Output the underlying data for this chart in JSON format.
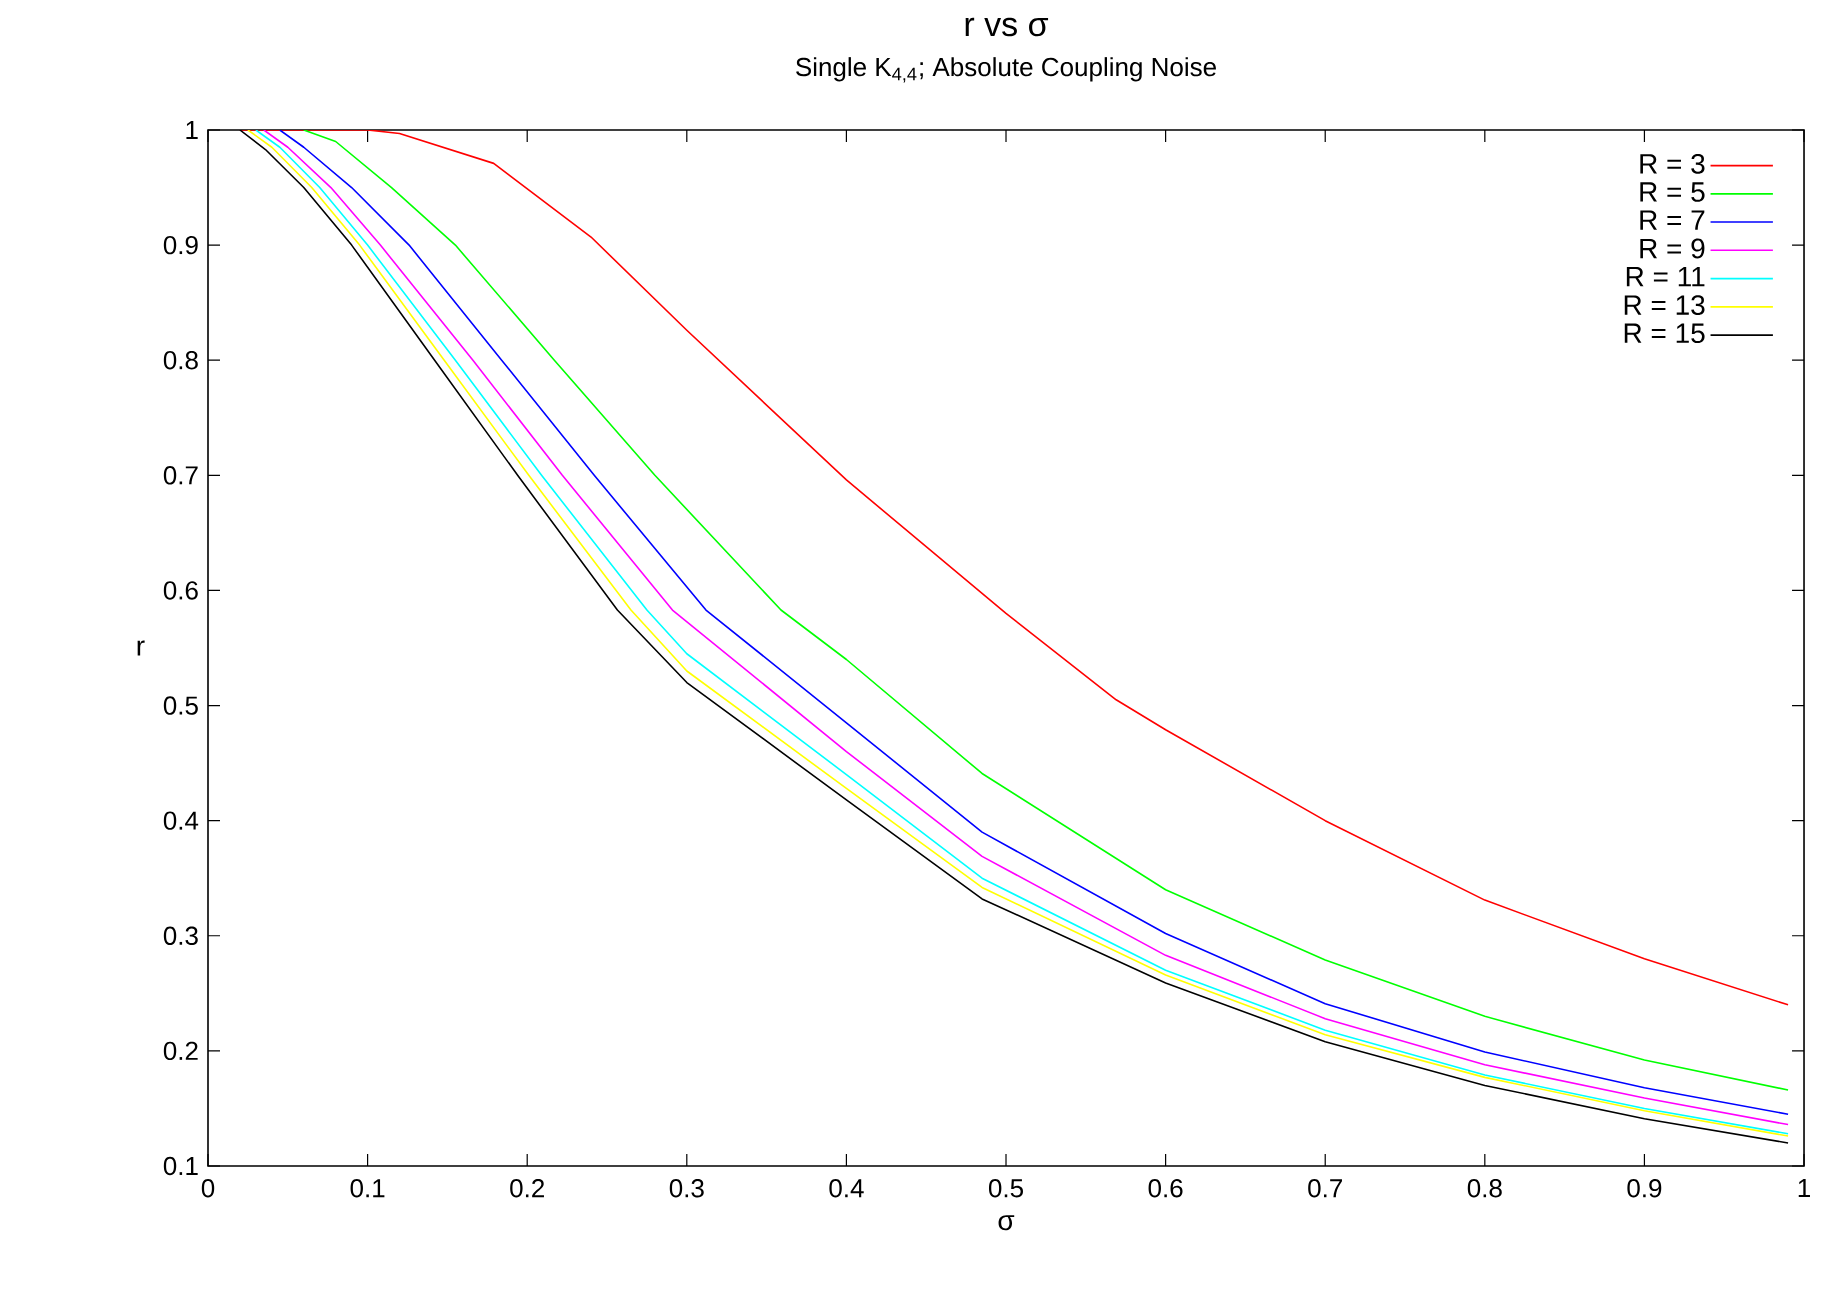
{
  "chart_data": {
    "type": "line",
    "title": "r vs σ",
    "subtitle": "Single K$_{4,4}$; Absolute Coupling Noise",
    "xlabel": "σ",
    "ylabel": "r",
    "xlim": [
      0,
      1
    ],
    "ylim": [
      0.1,
      1
    ],
    "xticks": [
      0,
      0.1,
      0.2,
      0.3,
      0.4,
      0.5,
      0.6,
      0.7,
      0.8,
      0.9,
      1
    ],
    "yticks": [
      0.1,
      0.2,
      0.3,
      0.4,
      0.5,
      0.6,
      0.7,
      0.8,
      0.9,
      1
    ],
    "grid": false,
    "legend": "top right",
    "marker": "none",
    "line_style": "solid",
    "series": [
      {
        "name": "R = 3",
        "color": "#ff0000",
        "x": [
          0.02,
          0.1,
          0.12,
          0.179,
          0.24,
          0.3,
          0.4,
          0.5,
          0.569,
          0.6,
          0.7,
          0.8,
          0.9,
          0.99
        ],
        "values": [
          1,
          1,
          0.997,
          0.971,
          0.907,
          0.826,
          0.696,
          0.58,
          0.505,
          0.479,
          0.4,
          0.331,
          0.28,
          0.24
        ]
      },
      {
        "name": "R = 5",
        "color": "#00ff00",
        "x": [
          0.06,
          0.08,
          0.115,
          0.155,
          0.217,
          0.28,
          0.359,
          0.4,
          0.485,
          0.6,
          0.7,
          0.8,
          0.9,
          0.99
        ],
        "values": [
          1,
          0.99,
          0.95,
          0.9,
          0.8,
          0.7,
          0.583,
          0.54,
          0.441,
          0.34,
          0.279,
          0.23,
          0.192,
          0.166
        ]
      },
      {
        "name": "R = 7",
        "color": "#0000ff",
        "x": [
          0.045,
          0.06,
          0.09,
          0.126,
          0.184,
          0.242,
          0.312,
          0.4,
          0.485,
          0.6,
          0.7,
          0.8,
          0.9,
          0.99
        ],
        "values": [
          1,
          0.985,
          0.95,
          0.9,
          0.8,
          0.7,
          0.583,
          0.485,
          0.39,
          0.302,
          0.241,
          0.199,
          0.168,
          0.145
        ]
      },
      {
        "name": "R = 9",
        "color": "#ff00ff",
        "x": [
          0.035,
          0.05,
          0.077,
          0.108,
          0.166,
          0.222,
          0.291,
          0.4,
          0.485,
          0.6,
          0.7,
          0.8,
          0.9,
          0.99
        ],
        "values": [
          1,
          0.985,
          0.95,
          0.9,
          0.8,
          0.7,
          0.583,
          0.46,
          0.369,
          0.283,
          0.228,
          0.188,
          0.159,
          0.136
        ]
      },
      {
        "name": "R = 11",
        "color": "#00ffff",
        "x": [
          0.03,
          0.045,
          0.07,
          0.1,
          0.155,
          0.209,
          0.275,
          0.3,
          0.4,
          0.485,
          0.6,
          0.7,
          0.8,
          0.9,
          0.99
        ],
        "values": [
          1,
          0.985,
          0.95,
          0.9,
          0.8,
          0.7,
          0.583,
          0.545,
          0.44,
          0.35,
          0.27,
          0.218,
          0.179,
          0.15,
          0.128
        ]
      },
      {
        "name": "R = 13",
        "color": "#ffff00",
        "x": [
          0.025,
          0.04,
          0.065,
          0.095,
          0.148,
          0.201,
          0.265,
          0.3,
          0.4,
          0.485,
          0.6,
          0.7,
          0.8,
          0.9,
          0.99
        ],
        "values": [
          1,
          0.985,
          0.95,
          0.9,
          0.8,
          0.7,
          0.583,
          0.53,
          0.428,
          0.342,
          0.266,
          0.214,
          0.177,
          0.148,
          0.126
        ]
      },
      {
        "name": "R = 15",
        "color": "#000000",
        "x": [
          0.02,
          0.036,
          0.06,
          0.09,
          0.142,
          0.194,
          0.2565,
          0.3,
          0.4,
          0.485,
          0.6,
          0.7,
          0.8,
          0.9,
          0.99
        ],
        "values": [
          1,
          0.983,
          0.95,
          0.9,
          0.8,
          0.7,
          0.583,
          0.52,
          0.418,
          0.332,
          0.259,
          0.208,
          0.17,
          0.141,
          0.12
        ]
      }
    ]
  }
}
